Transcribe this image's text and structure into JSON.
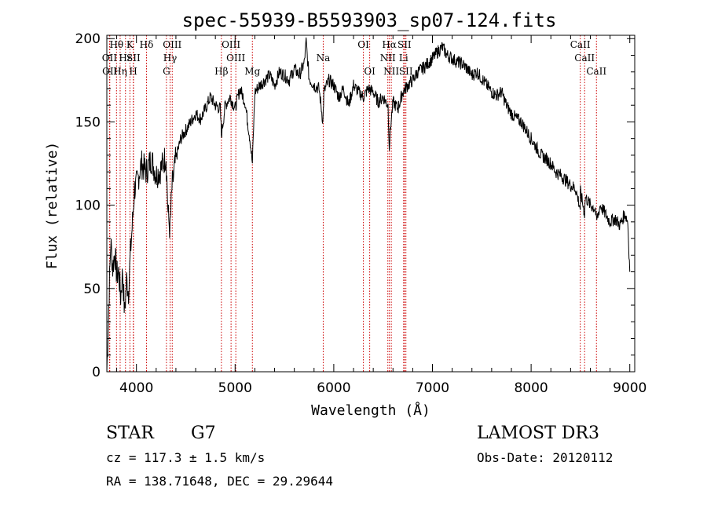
{
  "chart_data": {
    "type": "line",
    "title": "spec-55939-B5593903_sp07-124.fits",
    "xlabel": "Wavelength (Å)",
    "ylabel": "Flux (relative)",
    "xlim": [
      3700,
      9050
    ],
    "ylim": [
      0,
      202
    ],
    "xticks": [
      4000,
      5000,
      6000,
      7000,
      8000,
      9000
    ],
    "yticks": [
      0,
      50,
      100,
      150,
      200
    ],
    "line_color": "#000000",
    "marker_color": "#cc0000",
    "series": [
      {
        "name": "flux",
        "x": [
          3700,
          3720,
          3740,
          3760,
          3780,
          3800,
          3820,
          3840,
          3860,
          3880,
          3900,
          3920,
          3940,
          3960,
          3980,
          4000,
          4050,
          4100,
          4150,
          4200,
          4250,
          4300,
          4320,
          4340,
          4360,
          4400,
          4450,
          4500,
          4550,
          4600,
          4650,
          4700,
          4750,
          4800,
          4850,
          4861,
          4900,
          4950,
          5000,
          5050,
          5100,
          5150,
          5175,
          5200,
          5250,
          5300,
          5350,
          5400,
          5450,
          5500,
          5550,
          5600,
          5650,
          5700,
          5720,
          5750,
          5800,
          5850,
          5890,
          5900,
          5950,
          6000,
          6050,
          6100,
          6150,
          6200,
          6250,
          6300,
          6350,
          6400,
          6450,
          6500,
          6550,
          6563,
          6580,
          6600,
          6650,
          6700,
          6750,
          6800,
          6850,
          6900,
          6950,
          7000,
          7050,
          7100,
          7150,
          7200,
          7250,
          7300,
          7350,
          7400,
          7450,
          7500,
          7550,
          7600,
          7650,
          7700,
          7750,
          7800,
          7850,
          7900,
          7950,
          8000,
          8050,
          8100,
          8150,
          8200,
          8250,
          8300,
          8350,
          8400,
          8450,
          8498,
          8500,
          8542,
          8550,
          8600,
          8650,
          8662,
          8700,
          8750,
          8800,
          8850,
          8900,
          8950,
          8980,
          9000
        ],
        "values": [
          0,
          40,
          78,
          62,
          72,
          58,
          60,
          45,
          60,
          35,
          55,
          48,
          72,
          90,
          110,
          112,
          125,
          120,
          128,
          118,
          122,
          130,
          95,
          85,
          110,
          128,
          140,
          145,
          150,
          155,
          152,
          158,
          165,
          160,
          158,
          142,
          160,
          165,
          158,
          170,
          162,
          140,
          125,
          168,
          172,
          175,
          178,
          172,
          180,
          178,
          175,
          182,
          178,
          185,
          198,
          176,
          172,
          170,
          150,
          168,
          175,
          172,
          165,
          170,
          160,
          172,
          168,
          165,
          170,
          168,
          162,
          165,
          160,
          135,
          150,
          162,
          158,
          168,
          172,
          175,
          180,
          182,
          185,
          188,
          192,
          195,
          190,
          188,
          186,
          185,
          182,
          178,
          180,
          176,
          172,
          168,
          166,
          168,
          160,
          155,
          152,
          150,
          145,
          140,
          135,
          130,
          128,
          125,
          120,
          118,
          115,
          112,
          110,
          98,
          108,
          95,
          105,
          100,
          98,
          90,
          100,
          95,
          90,
          92,
          88,
          95,
          90,
          60
        ]
      }
    ],
    "spectral_lines": [
      {
        "label": "Hθ",
        "x": 3798,
        "row": 1
      },
      {
        "label": "OII",
        "x": 3727,
        "row": 2
      },
      {
        "label": "OII",
        "x": 3730,
        "row": 3
      },
      {
        "label": "Hε",
        "x": 3889,
        "row": 2
      },
      {
        "label": "K",
        "x": 3934,
        "row": 1
      },
      {
        "label": "Hη",
        "x": 3835,
        "row": 3
      },
      {
        "label": "SII",
        "x": 3970,
        "row": 2
      },
      {
        "label": "H",
        "x": 3968,
        "row": 3
      },
      {
        "label": "Hδ",
        "x": 4102,
        "row": 1
      },
      {
        "label": "OIII",
        "x": 4363,
        "row": 1
      },
      {
        "label": "Hγ",
        "x": 4341,
        "row": 2
      },
      {
        "label": "G",
        "x": 4304,
        "row": 3
      },
      {
        "label": "OIII",
        "x": 4959,
        "row": 1
      },
      {
        "label": "OIII",
        "x": 5007,
        "row": 2
      },
      {
        "label": "Hβ",
        "x": 4861,
        "row": 3
      },
      {
        "label": "Mg",
        "x": 5175,
        "row": 3
      },
      {
        "label": "Na",
        "x": 5893,
        "row": 2
      },
      {
        "label": "OI",
        "x": 6300,
        "row": 1
      },
      {
        "label": "OI",
        "x": 6364,
        "row": 3
      },
      {
        "label": "Hα",
        "x": 6563,
        "row": 1
      },
      {
        "label": "SII",
        "x": 6716,
        "row": 1
      },
      {
        "label": "NII",
        "x": 6548,
        "row": 2
      },
      {
        "label": "Li",
        "x": 6708,
        "row": 2
      },
      {
        "label": "NII",
        "x": 6583,
        "row": 3
      },
      {
        "label": "SII",
        "x": 6731,
        "row": 3
      },
      {
        "label": "CaII",
        "x": 8498,
        "row": 1
      },
      {
        "label": "CaII",
        "x": 8542,
        "row": 2
      },
      {
        "label": "CaII",
        "x": 8662,
        "row": 3
      }
    ]
  },
  "info": {
    "class_label": "STAR",
    "subclass_label": "G7",
    "survey": "LAMOST DR3",
    "cz": "cz = 117.3 ± 1.5 km/s",
    "obs_date": "Obs-Date: 20120112",
    "radec": "RA = 138.71648, DEC =  29.29644"
  }
}
